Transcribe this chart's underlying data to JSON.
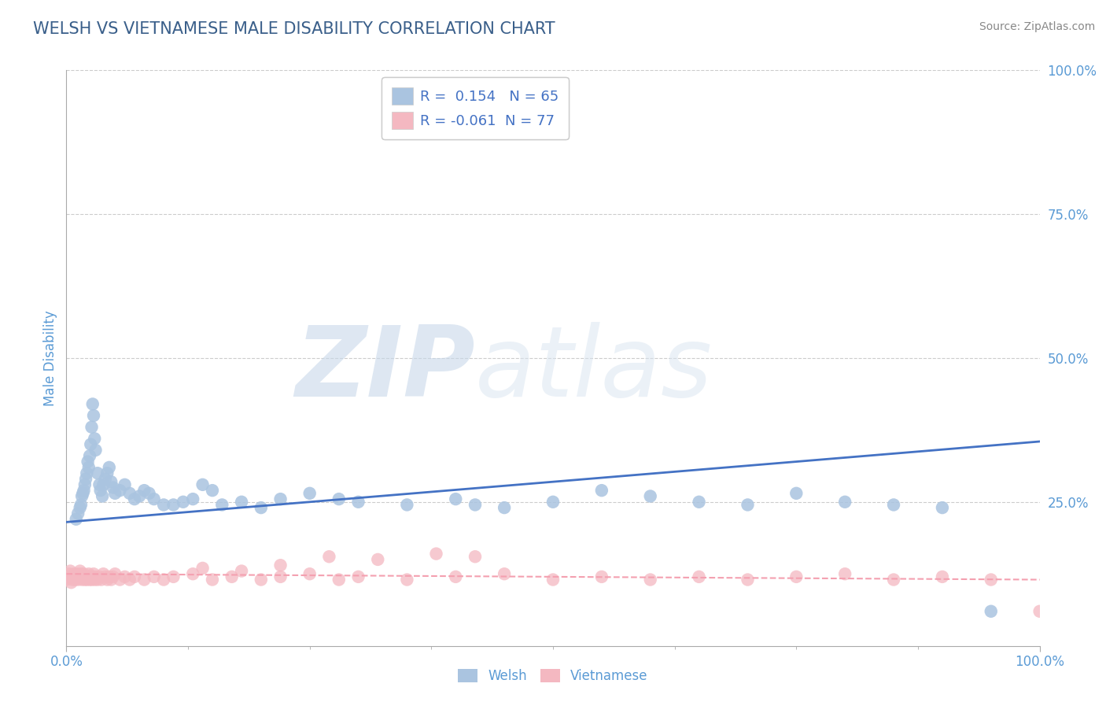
{
  "title": "WELSH VS VIETNAMESE MALE DISABILITY CORRELATION CHART",
  "source_text": "Source: ZipAtlas.com",
  "ylabel": "Male Disability",
  "background_color": "#ffffff",
  "title_color": "#3a5f8a",
  "title_fontsize": 15,
  "watermark_zip": "ZIP",
  "watermark_atlas": "atlas",
  "welsh_color": "#aac4e0",
  "vietnamese_color": "#f4b8c1",
  "welsh_R": 0.154,
  "welsh_N": 65,
  "vietnamese_R": -0.061,
  "vietnamese_N": 77,
  "welsh_scatter_x": [
    0.01,
    0.012,
    0.014,
    0.015,
    0.016,
    0.017,
    0.018,
    0.019,
    0.02,
    0.021,
    0.022,
    0.023,
    0.024,
    0.025,
    0.026,
    0.027,
    0.028,
    0.029,
    0.03,
    0.032,
    0.034,
    0.035,
    0.037,
    0.038,
    0.04,
    0.042,
    0.044,
    0.046,
    0.048,
    0.05,
    0.055,
    0.06,
    0.065,
    0.07,
    0.075,
    0.08,
    0.085,
    0.09,
    0.1,
    0.11,
    0.12,
    0.13,
    0.14,
    0.15,
    0.16,
    0.18,
    0.2,
    0.22,
    0.25,
    0.28,
    0.3,
    0.35,
    0.4,
    0.42,
    0.45,
    0.5,
    0.55,
    0.6,
    0.65,
    0.7,
    0.75,
    0.8,
    0.85,
    0.9,
    0.95
  ],
  "welsh_scatter_y": [
    0.22,
    0.23,
    0.24,
    0.245,
    0.26,
    0.265,
    0.27,
    0.28,
    0.29,
    0.3,
    0.32,
    0.31,
    0.33,
    0.35,
    0.38,
    0.42,
    0.4,
    0.36,
    0.34,
    0.3,
    0.28,
    0.27,
    0.26,
    0.28,
    0.29,
    0.3,
    0.31,
    0.285,
    0.275,
    0.265,
    0.27,
    0.28,
    0.265,
    0.255,
    0.26,
    0.27,
    0.265,
    0.255,
    0.245,
    0.245,
    0.25,
    0.255,
    0.28,
    0.27,
    0.245,
    0.25,
    0.24,
    0.255,
    0.265,
    0.255,
    0.25,
    0.245,
    0.255,
    0.245,
    0.24,
    0.25,
    0.27,
    0.26,
    0.25,
    0.245,
    0.265,
    0.25,
    0.245,
    0.24,
    0.06
  ],
  "vietnamese_scatter_x": [
    0.0,
    0.002,
    0.003,
    0.004,
    0.005,
    0.006,
    0.007,
    0.008,
    0.009,
    0.01,
    0.011,
    0.012,
    0.013,
    0.014,
    0.015,
    0.016,
    0.017,
    0.018,
    0.019,
    0.02,
    0.021,
    0.022,
    0.023,
    0.024,
    0.025,
    0.026,
    0.027,
    0.028,
    0.029,
    0.03,
    0.032,
    0.034,
    0.036,
    0.038,
    0.04,
    0.042,
    0.044,
    0.046,
    0.048,
    0.05,
    0.055,
    0.06,
    0.065,
    0.07,
    0.08,
    0.09,
    0.1,
    0.11,
    0.13,
    0.15,
    0.17,
    0.2,
    0.22,
    0.25,
    0.28,
    0.3,
    0.35,
    0.4,
    0.45,
    0.5,
    0.55,
    0.6,
    0.65,
    0.7,
    0.75,
    0.8,
    0.85,
    0.9,
    0.95,
    1.0,
    0.42,
    0.38,
    0.32,
    0.27,
    0.22,
    0.18,
    0.14
  ],
  "vietnamese_scatter_y": [
    0.115,
    0.12,
    0.125,
    0.13,
    0.11,
    0.115,
    0.12,
    0.125,
    0.115,
    0.12,
    0.125,
    0.115,
    0.12,
    0.13,
    0.125,
    0.115,
    0.12,
    0.125,
    0.115,
    0.12,
    0.115,
    0.12,
    0.125,
    0.115,
    0.12,
    0.115,
    0.12,
    0.125,
    0.115,
    0.12,
    0.115,
    0.12,
    0.115,
    0.125,
    0.12,
    0.115,
    0.12,
    0.115,
    0.12,
    0.125,
    0.115,
    0.12,
    0.115,
    0.12,
    0.115,
    0.12,
    0.115,
    0.12,
    0.125,
    0.115,
    0.12,
    0.115,
    0.12,
    0.125,
    0.115,
    0.12,
    0.115,
    0.12,
    0.125,
    0.115,
    0.12,
    0.115,
    0.12,
    0.115,
    0.12,
    0.125,
    0.115,
    0.12,
    0.115,
    0.06,
    0.155,
    0.16,
    0.15,
    0.155,
    0.14,
    0.13,
    0.135
  ],
  "xlim": [
    0.0,
    1.0
  ],
  "ylim": [
    0.0,
    1.0
  ],
  "y_ticks": [
    0.25,
    0.5,
    0.75,
    1.0
  ],
  "y_tick_labels": [
    "25.0%",
    "50.0%",
    "75.0%",
    "100.0%"
  ],
  "x_ticks": [
    0.0,
    1.0
  ],
  "x_tick_labels": [
    "0.0%",
    "100.0%"
  ],
  "grid_color": "#cccccc",
  "line_welsh_color": "#4472c4",
  "line_vietnamese_color": "#f4a0b0",
  "axis_label_color": "#5b9bd5",
  "tick_color": "#5b9bd5",
  "welsh_line_start_y": 0.215,
  "welsh_line_end_y": 0.355,
  "vietnamese_line_start_y": 0.125,
  "vietnamese_line_end_y": 0.115
}
